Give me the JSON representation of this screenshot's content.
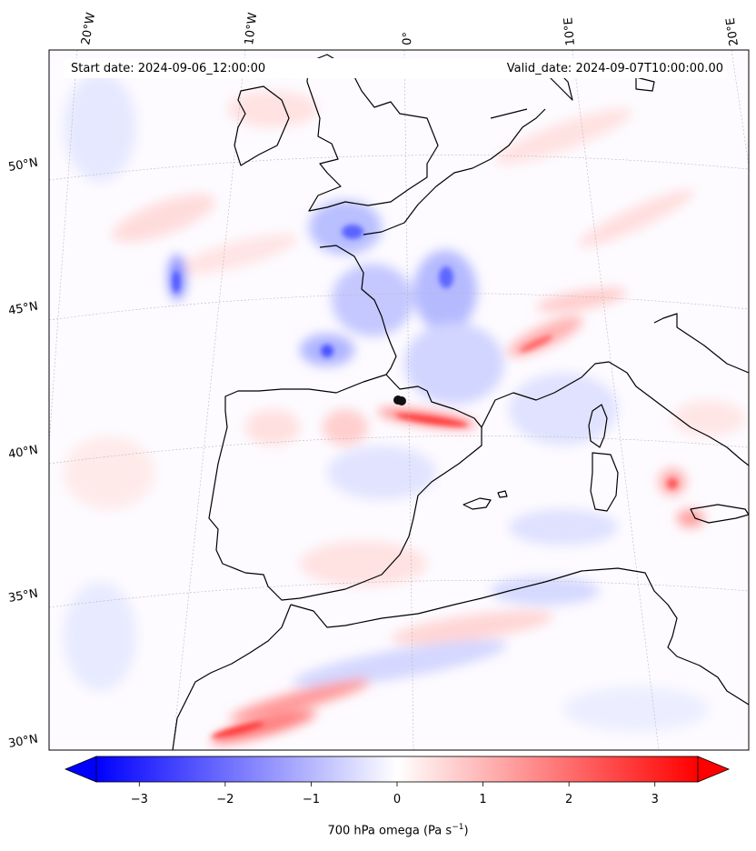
{
  "header": {
    "start_date": "Start date: 2024-09-06_12:00:00",
    "valid_date": "Valid_date: 2024-09-07T10:00:00.00"
  },
  "longitude_labels": [
    "20°W",
    "10°W",
    "0°",
    "10°E",
    "20°E"
  ],
  "latitude_labels": [
    "50°N",
    "45°N",
    "40°N",
    "35°N",
    "30°N"
  ],
  "colorbar": {
    "variable": "700 hPa omega",
    "unit_main": "Pa s",
    "unit_exponent": "−1",
    "ticks": [
      "−3",
      "−2",
      "−1",
      "0",
      "1",
      "2",
      "3"
    ],
    "range": [
      -3.5,
      3.5
    ],
    "colormap": "bwr",
    "low_color": "#0000ff",
    "mid_color": "#ffffff",
    "high_color": "#ff0000",
    "extend": "both"
  },
  "map": {
    "projection": "conic",
    "field": "omega_700hPa",
    "coastline_color": "#000000",
    "gridline_color": "#b0b0b0",
    "gridlines": true
  }
}
